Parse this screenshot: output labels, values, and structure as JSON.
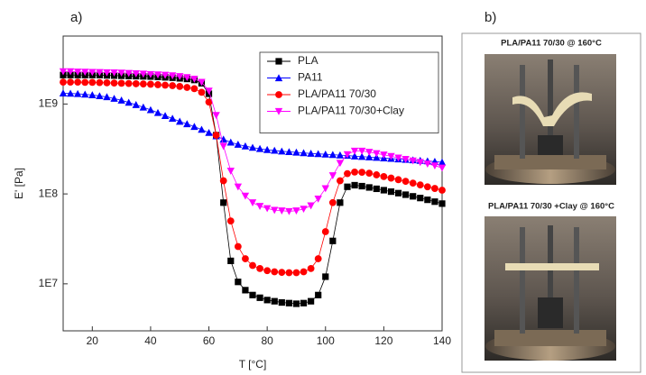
{
  "panel_labels": [
    "a)",
    "b)"
  ],
  "chart_data": {
    "type": "line",
    "xlabel": "T [°C]",
    "ylabel": "E' [Pa]",
    "log_y": true,
    "legend": "upper right",
    "xlim": [
      10,
      140
    ],
    "xticks": [
      20,
      40,
      60,
      80,
      100,
      120,
      140
    ],
    "ylim": [
      3000000,
      5700000000
    ],
    "yticks": [
      {
        "value": 10000000,
        "label": "1E7"
      },
      {
        "value": 100000000,
        "label": "1E8"
      },
      {
        "value": 1000000000,
        "label": "1E9"
      }
    ],
    "x": [
      10,
      12.5,
      15,
      17.5,
      20,
      22.5,
      25,
      27.5,
      30,
      32.5,
      35,
      37.5,
      40,
      42.5,
      45,
      47.5,
      50,
      52.5,
      55,
      57.5,
      60,
      62.5,
      65,
      67.5,
      70,
      72.5,
      75,
      77.5,
      80,
      82.5,
      85,
      87.5,
      90,
      92.5,
      95,
      97.5,
      100,
      102.5,
      105,
      107.5,
      110,
      112.5,
      115,
      117.5,
      120,
      122.5,
      125,
      127.5,
      130,
      132.5,
      135,
      137.5,
      140
    ],
    "series": [
      {
        "name": "PLA",
        "color": "#000000",
        "marker": "square",
        "values": [
          2100000000.0,
          2100000000.0,
          2100000000.0,
          2100000000.0,
          2100000000.0,
          2100000000.0,
          2080000000.0,
          2070000000.0,
          2060000000.0,
          2050000000.0,
          2040000000.0,
          2030000000.0,
          2020000000.0,
          2000000000.0,
          1980000000.0,
          1960000000.0,
          1930000000.0,
          1900000000.0,
          1850000000.0,
          1700000000.0,
          1300000000.0,
          450000000.0,
          80000000.0,
          18000000.0,
          10500000.0,
          8500000.0,
          7500000.0,
          7000000.0,
          6600000.0,
          6400000.0,
          6200000.0,
          6100000.0,
          6000000.0,
          6100000.0,
          6400000.0,
          7500000.0,
          12000000.0,
          30000000.0,
          80000000.0,
          120000000.0,
          125000000.0,
          122000000.0,
          118000000.0,
          114000000.0,
          110000000.0,
          106000000.0,
          102000000.0,
          98000000.0,
          94000000.0,
          90000000.0,
          86000000.0,
          82000000.0,
          78000000.0
        ]
      },
      {
        "name": "PA11",
        "color": "#0000ff",
        "marker": "triangle-up",
        "values": [
          1320000000.0,
          1310000000.0,
          1300000000.0,
          1280000000.0,
          1260000000.0,
          1230000000.0,
          1200000000.0,
          1150000000.0,
          1100000000.0,
          1040000000.0,
          980000000.0,
          920000000.0,
          860000000.0,
          800000000.0,
          740000000.0,
          690000000.0,
          640000000.0,
          600000000.0,
          560000000.0,
          520000000.0,
          480000000.0,
          440000000.0,
          405000000.0,
          375000000.0,
          355000000.0,
          340000000.0,
          328000000.0,
          318000000.0,
          310000000.0,
          304000000.0,
          298000000.0,
          294000000.0,
          290000000.0,
          286000000.0,
          282000000.0,
          279000000.0,
          276000000.0,
          273000000.0,
          270000000.0,
          267000000.0,
          263000000.0,
          260000000.0,
          257000000.0,
          254000000.0,
          250000000.0,
          247000000.0,
          244000000.0,
          241000000.0,
          238000000.0,
          235000000.0,
          232000000.0,
          229000000.0,
          225000000.0
        ]
      },
      {
        "name": "PLA/PA11 70/30",
        "color": "#ff0000",
        "marker": "circle",
        "values": [
          1750000000.0,
          1750000000.0,
          1750000000.0,
          1740000000.0,
          1740000000.0,
          1730000000.0,
          1720000000.0,
          1710000000.0,
          1700000000.0,
          1690000000.0,
          1680000000.0,
          1670000000.0,
          1660000000.0,
          1640000000.0,
          1620000000.0,
          1600000000.0,
          1570000000.0,
          1530000000.0,
          1480000000.0,
          1350000000.0,
          1050000000.0,
          450000000.0,
          140000000.0,
          50000000.0,
          26000000.0,
          19000000.0,
          16000000.0,
          14800000.0,
          14000000.0,
          13600000.0,
          13400000.0,
          13300000.0,
          13300000.0,
          13600000.0,
          14800000.0,
          19000000.0,
          38000000.0,
          80000000.0,
          140000000.0,
          168000000.0,
          175000000.0,
          174000000.0,
          170000000.0,
          163000000.0,
          156000000.0,
          150000000.0,
          144000000.0,
          138000000.0,
          132000000.0,
          126000000.0,
          120000000.0,
          115000000.0,
          110000000.0
        ]
      },
      {
        "name": "PLA/PA11 70/30+Clay",
        "color": "#ff00ff",
        "marker": "triangle-down",
        "values": [
          2300000000.0,
          2300000000.0,
          2280000000.0,
          2270000000.0,
          2260000000.0,
          2250000000.0,
          2240000000.0,
          2230000000.0,
          2220000000.0,
          2200000000.0,
          2180000000.0,
          2160000000.0,
          2140000000.0,
          2120000000.0,
          2100000000.0,
          2070000000.0,
          2030000000.0,
          1980000000.0,
          1900000000.0,
          1750000000.0,
          1400000000.0,
          750000000.0,
          340000000.0,
          180000000.0,
          120000000.0,
          95000000.0,
          80000000.0,
          73000000.0,
          69000000.0,
          66000000.0,
          65000000.0,
          64000000.0,
          65000000.0,
          68000000.0,
          74000000.0,
          88000000.0,
          115000000.0,
          160000000.0,
          220000000.0,
          275000000.0,
          300000000.0,
          300000000.0,
          292000000.0,
          282000000.0,
          272000000.0,
          262000000.0,
          252000000.0,
          243000000.0,
          234000000.0,
          225000000.0,
          216000000.0,
          206000000.0,
          195000000.0
        ]
      }
    ]
  },
  "photos": [
    {
      "caption": "PLA/PA11 70/30 @ 160°C"
    },
    {
      "caption": "PLA/PA11 70/30 +Clay @ 160°C"
    }
  ]
}
